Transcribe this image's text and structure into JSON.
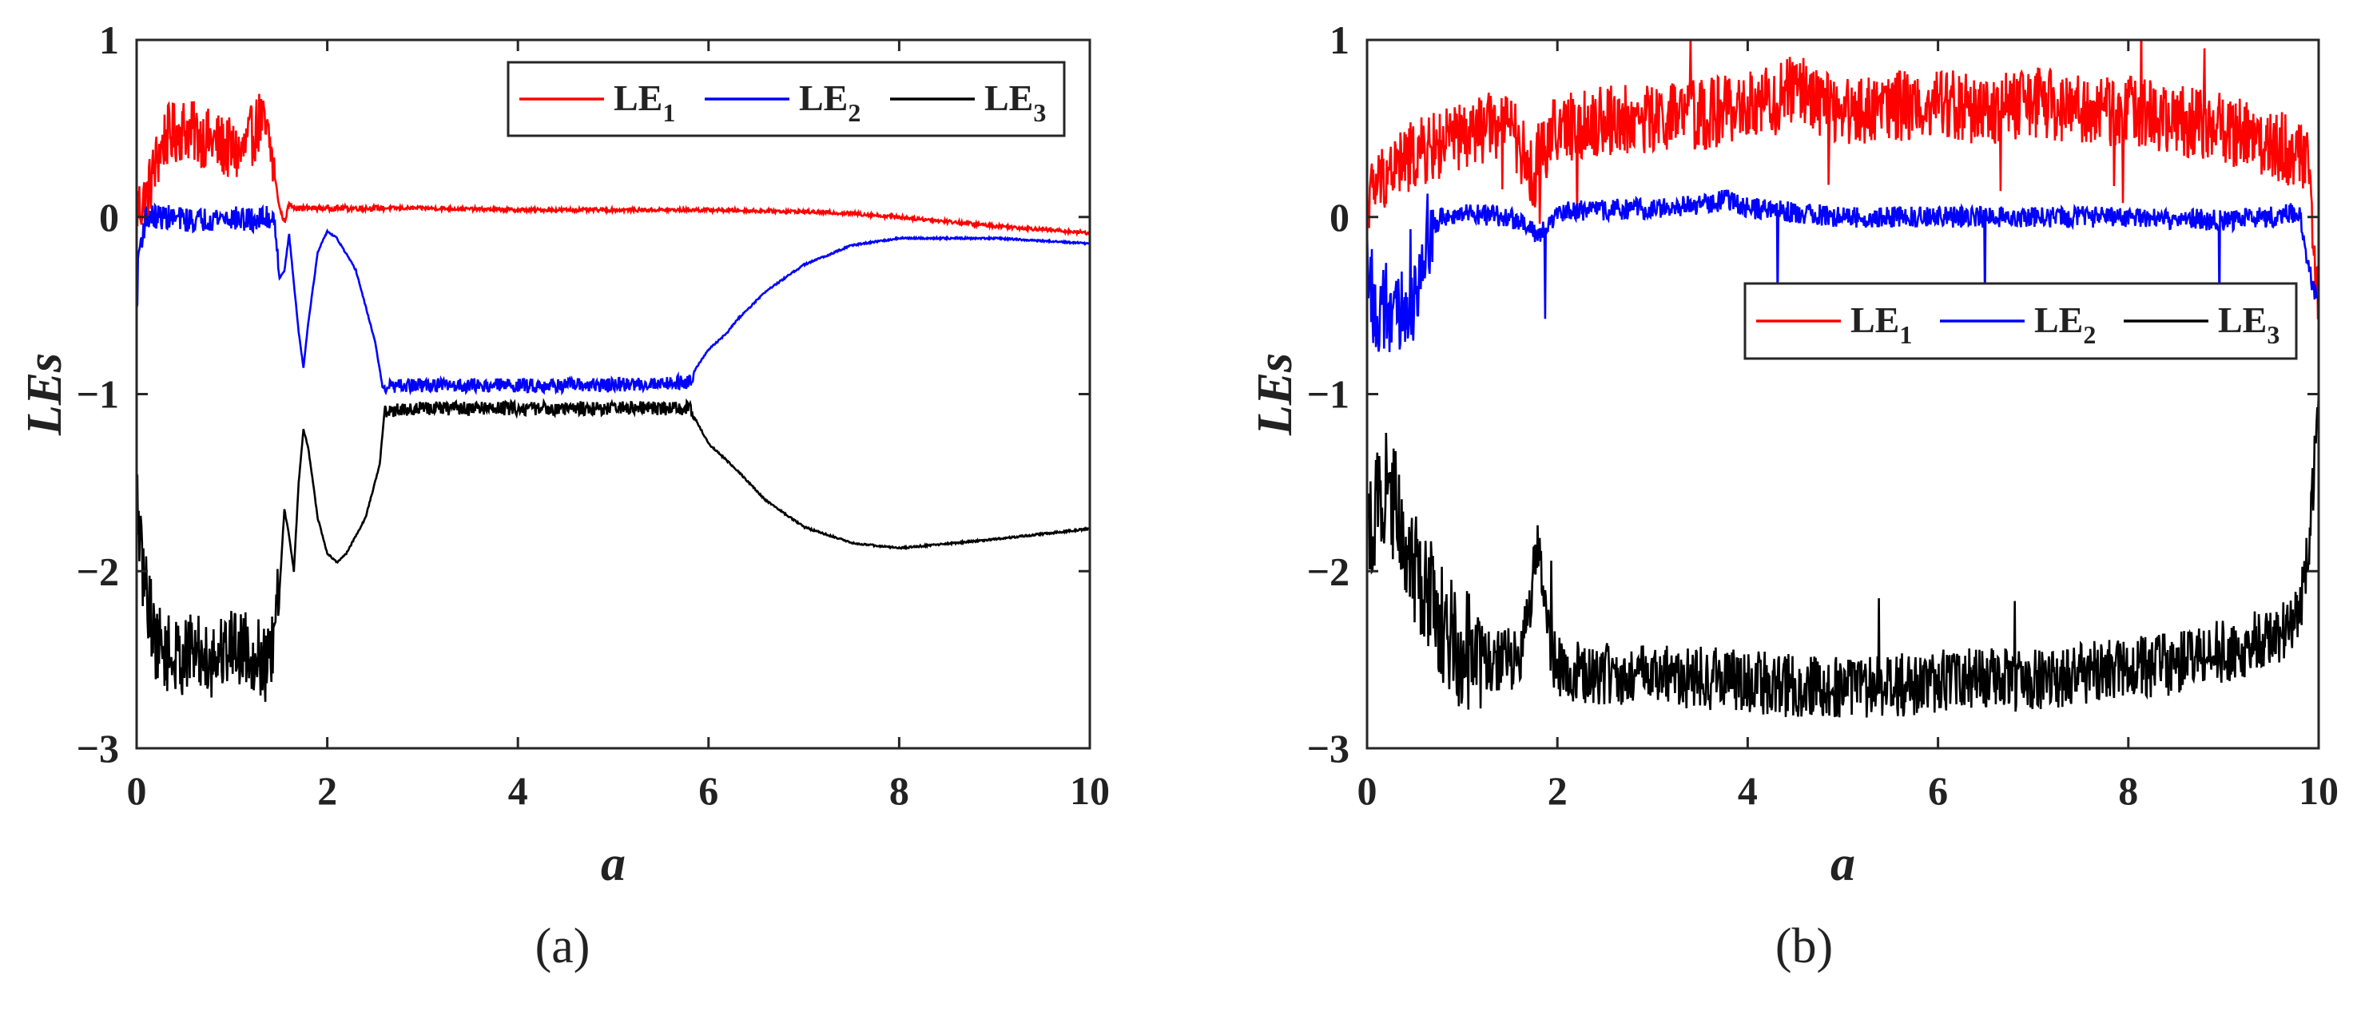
{
  "chart_data": [
    {
      "type": "line",
      "panel_label": "(a)",
      "xlabel": "a",
      "ylabel": "LEs",
      "xlim": [
        0,
        10
      ],
      "ylim": [
        -3,
        1
      ],
      "xticks": [
        "0",
        "2",
        "4",
        "6",
        "8",
        "10"
      ],
      "yticks": [
        "1",
        "0",
        "-1",
        "-2",
        "-3"
      ],
      "legend_position": "top-right",
      "series": [
        {
          "name": "LE",
          "subscript": "1",
          "color": "#ff0000",
          "x": [
            0,
            0.1,
            0.2,
            0.3,
            0.5,
            0.7,
            0.9,
            1.1,
            1.3,
            1.4,
            1.5,
            1.55,
            1.6,
            1.7,
            2,
            3,
            4,
            5,
            6,
            7,
            7.5,
            8,
            9,
            10
          ],
          "y": [
            0.05,
            0.1,
            0.3,
            0.45,
            0.5,
            0.45,
            0.4,
            0.35,
            0.55,
            0.4,
            0.05,
            -0.03,
            0.07,
            0.05,
            0.05,
            0.05,
            0.04,
            0.04,
            0.04,
            0.03,
            0.02,
            0.0,
            -0.05,
            -0.09
          ]
        },
        {
          "name": "LE",
          "subscript": "2",
          "color": "#0000ff",
          "x": [
            0,
            0.02,
            0.1,
            0.3,
            0.6,
            0.9,
            1.2,
            1.45,
            1.5,
            1.55,
            1.6,
            1.7,
            1.75,
            1.8,
            1.9,
            2.0,
            2.1,
            2.3,
            2.5,
            2.58,
            3,
            4,
            5,
            5.8,
            5.87,
            6.0,
            6.2,
            6.3,
            6.6,
            7.0,
            7.5,
            8.0,
            9.0,
            10.0
          ],
          "y": [
            -0.55,
            -0.2,
            0.0,
            0.0,
            -0.02,
            0.0,
            -0.02,
            0.0,
            -0.35,
            -0.3,
            -0.1,
            -0.65,
            -0.85,
            -0.6,
            -0.2,
            -0.08,
            -0.12,
            -0.3,
            -0.7,
            -0.96,
            -0.95,
            -0.95,
            -0.95,
            -0.93,
            -0.85,
            -0.75,
            -0.65,
            -0.58,
            -0.42,
            -0.27,
            -0.16,
            -0.12,
            -0.12,
            -0.15
          ]
        },
        {
          "name": "LE",
          "subscript": "3",
          "color": "#000000",
          "x": [
            0,
            0.05,
            0.1,
            0.2,
            0.4,
            0.6,
            0.8,
            1.0,
            1.2,
            1.4,
            1.5,
            1.55,
            1.6,
            1.65,
            1.7,
            1.75,
            1.8,
            1.9,
            2.0,
            2.1,
            2.2,
            2.4,
            2.55,
            2.6,
            3,
            4,
            5,
            5.8,
            5.87,
            6.0,
            6.2,
            6.3,
            6.6,
            7.0,
            7.5,
            8.0,
            9.0,
            10.0
          ],
          "y": [
            -1.55,
            -1.95,
            -2.1,
            -2.4,
            -2.5,
            -2.45,
            -2.5,
            -2.4,
            -2.45,
            -2.55,
            -2.1,
            -1.65,
            -1.8,
            -2.0,
            -1.5,
            -1.2,
            -1.3,
            -1.7,
            -1.9,
            -1.95,
            -1.9,
            -1.7,
            -1.4,
            -1.1,
            -1.08,
            -1.08,
            -1.08,
            -1.08,
            -1.15,
            -1.28,
            -1.38,
            -1.43,
            -1.6,
            -1.75,
            -1.84,
            -1.87,
            -1.82,
            -1.76
          ]
        }
      ]
    },
    {
      "type": "line",
      "panel_label": "(b)",
      "xlabel": "a",
      "ylabel": "LEs",
      "xlim": [
        0,
        10
      ],
      "ylim": [
        -3,
        1
      ],
      "xticks": [
        "0",
        "2",
        "4",
        "6",
        "8",
        "10"
      ],
      "yticks": [
        "1",
        "0",
        "-1",
        "-2",
        "-3"
      ],
      "legend_position": "center-right",
      "series": [
        {
          "name": "LE",
          "subscript": "1",
          "color": "#ff0000",
          "x": [
            0,
            0.2,
            0.5,
            1.0,
            1.5,
            1.75,
            1.8,
            2.0,
            2.5,
            3.0,
            3.5,
            4.0,
            4.5,
            5.0,
            5.5,
            6.0,
            6.5,
            7.0,
            7.5,
            8.0,
            8.5,
            9.0,
            9.5,
            9.8,
            9.9,
            10.0
          ],
          "y": [
            0.1,
            0.25,
            0.35,
            0.45,
            0.55,
            0.2,
            0.35,
            0.5,
            0.55,
            0.55,
            0.58,
            0.62,
            0.72,
            0.6,
            0.62,
            0.65,
            0.6,
            0.65,
            0.6,
            0.6,
            0.55,
            0.5,
            0.42,
            0.35,
            0.3,
            -0.5
          ]
        },
        {
          "name": "LE",
          "subscript": "2",
          "color": "#0000ff",
          "x": [
            0,
            0.1,
            0.2,
            0.3,
            0.5,
            0.6,
            0.8,
            1.0,
            1.5,
            1.8,
            2.0,
            3.0,
            3.5,
            3.8,
            4.0,
            5.0,
            6.0,
            7.0,
            8.0,
            9.0,
            9.5,
            9.8,
            9.9,
            10.0
          ],
          "y": [
            -0.2,
            -0.65,
            -0.5,
            -0.6,
            -0.45,
            -0.1,
            0.0,
            0.02,
            0.0,
            -0.1,
            0.03,
            0.05,
            0.07,
            0.1,
            0.05,
            0.0,
            0.0,
            0.0,
            0.0,
            -0.02,
            0.0,
            0.03,
            -0.3,
            -0.5
          ]
        },
        {
          "name": "LE",
          "subscript": "3",
          "color": "#000000",
          "x": [
            0,
            0.1,
            0.2,
            0.4,
            0.6,
            0.8,
            1.0,
            1.3,
            1.6,
            1.7,
            1.8,
            1.9,
            2.0,
            2.5,
            3.0,
            3.5,
            4.0,
            4.5,
            5.0,
            5.5,
            6.0,
            6.5,
            7.0,
            7.5,
            8.0,
            8.5,
            9.0,
            9.5,
            9.8,
            9.9,
            10.0
          ],
          "y": [
            -1.8,
            -1.6,
            -1.5,
            -1.8,
            -2.1,
            -2.3,
            -2.45,
            -2.5,
            -2.5,
            -2.2,
            -1.85,
            -2.35,
            -2.55,
            -2.58,
            -2.6,
            -2.6,
            -2.62,
            -2.65,
            -2.65,
            -2.65,
            -2.62,
            -2.6,
            -2.62,
            -2.58,
            -2.55,
            -2.52,
            -2.45,
            -2.38,
            -2.25,
            -1.8,
            -1.1
          ]
        }
      ]
    }
  ]
}
